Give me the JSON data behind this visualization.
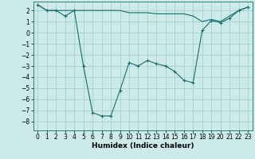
{
  "xlabel": "Humidex (Indice chaleur)",
  "background_color": "#cceaea",
  "grid_color": "#aad4d4",
  "line_color": "#1a6b6b",
  "xlim": [
    -0.5,
    23.5
  ],
  "ylim": [
    -8.8,
    2.8
  ],
  "x_line1": [
    0,
    1,
    2,
    3,
    4,
    5,
    6,
    7,
    8,
    9,
    10,
    11,
    12,
    13,
    14,
    15,
    16,
    17,
    18,
    19,
    20,
    21,
    22,
    23
  ],
  "y_line1": [
    2.5,
    2.0,
    2.0,
    1.5,
    2.0,
    -3.0,
    -7.2,
    -7.5,
    -7.5,
    -5.2,
    -2.7,
    -3.0,
    -2.5,
    -2.8,
    -3.0,
    -3.5,
    -4.3,
    -4.5,
    0.2,
    1.1,
    0.9,
    1.3,
    2.0,
    2.3
  ],
  "x_line2": [
    0,
    1,
    2,
    3,
    4,
    5,
    6,
    7,
    8,
    9,
    10,
    11,
    12,
    13,
    14,
    15,
    16,
    17,
    18,
    19,
    20,
    21,
    22,
    23
  ],
  "y_line2": [
    2.5,
    2.0,
    2.0,
    2.0,
    2.0,
    2.0,
    2.0,
    2.0,
    2.0,
    2.0,
    1.8,
    1.8,
    1.8,
    1.7,
    1.7,
    1.7,
    1.7,
    1.5,
    1.0,
    1.2,
    1.0,
    1.5,
    2.0,
    2.3
  ],
  "yticks": [
    -8,
    -7,
    -6,
    -5,
    -4,
    -3,
    -2,
    -1,
    0,
    1,
    2
  ],
  "xticks": [
    0,
    1,
    2,
    3,
    4,
    5,
    6,
    7,
    8,
    9,
    10,
    11,
    12,
    13,
    14,
    15,
    16,
    17,
    18,
    19,
    20,
    21,
    22,
    23
  ],
  "tick_fontsize": 5.5,
  "label_fontsize": 6.5
}
